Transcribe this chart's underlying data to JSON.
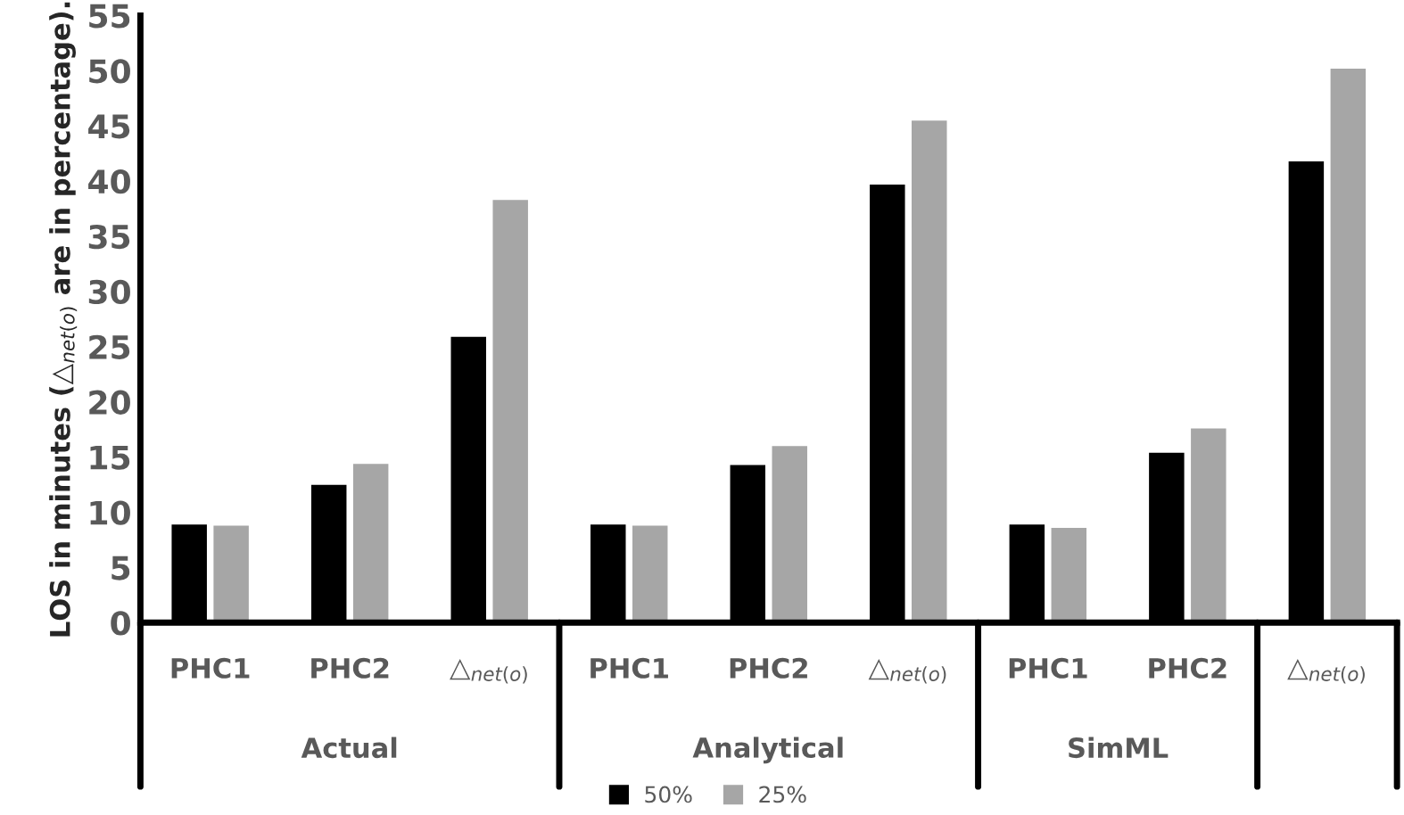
{
  "chart_data": {
    "type": "bar",
    "categories": [
      "PHC1",
      "PHC2",
      "△$_{net(o)}$",
      "PHC1",
      "PHC2",
      "△$_{net(o)}$",
      "PHC1",
      "PHC2",
      "△$_{net(o)}$"
    ],
    "series": [
      {
        "name": "50%",
        "color": "#000000",
        "values": [
          9.0,
          12.6,
          26.0,
          9.0,
          14.4,
          39.8,
          9.0,
          15.5,
          41.9
        ]
      },
      {
        "name": "25%",
        "color": "#a6a6a6",
        "values": [
          8.9,
          14.5,
          38.4,
          8.9,
          16.1,
          45.6,
          8.7,
          17.7,
          50.3
        ]
      }
    ],
    "ylabel": "LOS in minutes (△$_{net(o)}$ are in percentage).",
    "ylim": [
      0,
      55
    ],
    "yticks": [
      0,
      5,
      10,
      15,
      20,
      25,
      30,
      35,
      40,
      45,
      50,
      55
    ],
    "annotations": [
      "Actual",
      "Analytical",
      "SimML"
    ],
    "grid": false,
    "legend": "bottom"
  }
}
